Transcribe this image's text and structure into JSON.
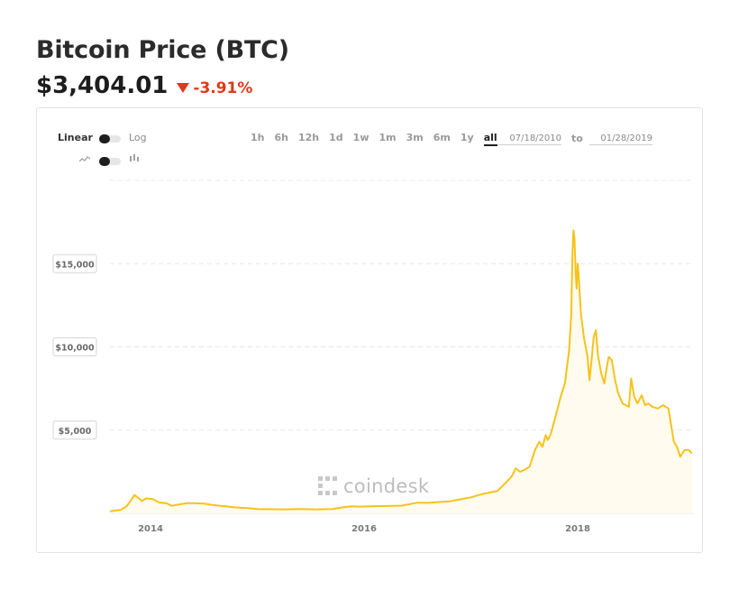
{
  "header": {
    "title": "Bitcoin Price (BTC)",
    "price": "$3,404.01",
    "change": "-3.91%",
    "change_color": "#e0391a"
  },
  "controls": {
    "scale_linear": "Linear",
    "scale_log": "Log",
    "line_icon": "line-chart-icon",
    "candle_icon": "candlestick-icon",
    "ranges": [
      "1h",
      "6h",
      "12h",
      "1d",
      "1w",
      "1m",
      "3m",
      "6m",
      "1y",
      "all"
    ],
    "active_range": "all",
    "date_from": "07/18/2010",
    "to_label": "to",
    "date_to": "01/28/2019"
  },
  "watermark": "coindesk",
  "chart_data": {
    "type": "area",
    "line_color": "#f7c21b",
    "ylim": [
      0,
      20000
    ],
    "y_ticks": [
      {
        "value": 5000,
        "label": "$5,000"
      },
      {
        "value": 10000,
        "label": "$10,000"
      },
      {
        "value": 15000,
        "label": "$15,000"
      }
    ],
    "x_ticks": [
      {
        "value": 2014,
        "label": "2014"
      },
      {
        "value": 2016,
        "label": "2016"
      },
      {
        "value": 2018,
        "label": "2018"
      }
    ],
    "xlim": [
      2013.62,
      2019.08
    ],
    "grid": true,
    "series": [
      {
        "x": [
          2013.62,
          2013.72,
          2013.78,
          2013.85,
          2013.88,
          2013.92,
          2013.96,
          2014.02,
          2014.08,
          2014.15,
          2014.2,
          2014.28,
          2014.35,
          2014.42,
          2014.5,
          2014.58,
          2014.7,
          2014.8,
          2014.9,
          2015.0,
          2015.1,
          2015.25,
          2015.4,
          2015.55,
          2015.7,
          2015.8,
          2015.88,
          2015.95,
          2016.05,
          2016.2,
          2016.35,
          2016.45,
          2016.5,
          2016.6,
          2016.7,
          2016.8,
          2016.9,
          2017.0,
          2017.1,
          2017.18,
          2017.25,
          2017.32,
          2017.38,
          2017.42,
          2017.46,
          2017.5,
          2017.55,
          2017.6,
          2017.64,
          2017.67,
          2017.7,
          2017.72,
          2017.75,
          2017.8,
          2017.84,
          2017.88,
          2017.92,
          2017.94,
          2017.95,
          2017.96,
          2017.97,
          2017.98,
          2017.99,
          2018.0,
          2018.01,
          2018.03,
          2018.06,
          2018.09,
          2018.11,
          2018.13,
          2018.15,
          2018.17,
          2018.19,
          2018.22,
          2018.25,
          2018.27,
          2018.29,
          2018.32,
          2018.35,
          2018.38,
          2018.42,
          2018.45,
          2018.48,
          2018.5,
          2018.53,
          2018.56,
          2018.6,
          2018.63,
          2018.66,
          2018.7,
          2018.75,
          2018.8,
          2018.85,
          2018.87,
          2018.9,
          2018.93,
          2018.96,
          2019.0,
          2019.04,
          2019.07
        ],
        "y": [
          120,
          200,
          450,
          1100,
          950,
          750,
          900,
          850,
          650,
          600,
          450,
          550,
          620,
          600,
          580,
          500,
          420,
          350,
          320,
          260,
          250,
          240,
          260,
          240,
          260,
          360,
          420,
          400,
          420,
          440,
          460,
          580,
          640,
          630,
          680,
          720,
          840,
          960,
          1150,
          1250,
          1350,
          1800,
          2200,
          2700,
          2500,
          2600,
          2800,
          3800,
          4300,
          4000,
          4700,
          4400,
          4800,
          6000,
          7000,
          7800,
          9800,
          12000,
          15500,
          17000,
          16500,
          14500,
          13500,
          15000,
          14200,
          12000,
          10500,
          9500,
          8000,
          9200,
          10600,
          11000,
          9500,
          8400,
          7800,
          8700,
          9400,
          9200,
          8000,
          7200,
          6600,
          6500,
          6400,
          8100,
          7000,
          6600,
          7100,
          6500,
          6600,
          6400,
          6300,
          6500,
          6300,
          5500,
          4300,
          4000,
          3400,
          3800,
          3800,
          3600
        ],
        "fill": "#fffbee"
      }
    ]
  }
}
